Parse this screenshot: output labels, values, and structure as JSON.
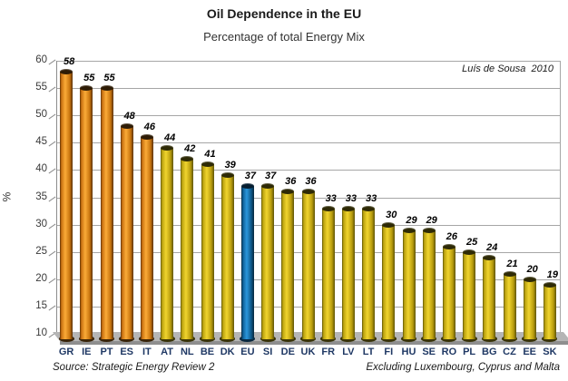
{
  "header": {
    "title": "Oil Dependence in the EU",
    "subtitle": "Percentage of total Energy Mix",
    "signature": "Luís de Sousa  2010"
  },
  "footer": {
    "source_note": "Source: Strategic Energy Review 2",
    "exclusion_note": "Excluding Luxembourg, Cyprus and Malta"
  },
  "chart_data": {
    "type": "bar",
    "style": "3d-cylinder",
    "title": "Oil Dependence in the EU",
    "subtitle": "Percentage of total Energy Mix",
    "categories": [
      "GR",
      "IE",
      "PT",
      "ES",
      "IT",
      "AT",
      "NL",
      "BE",
      "DK",
      "EU",
      "SI",
      "DE",
      "UK",
      "FR",
      "LV",
      "LT",
      "FI",
      "HU",
      "SE",
      "RO",
      "PL",
      "BG",
      "CZ",
      "EE",
      "SK"
    ],
    "values": [
      58,
      55,
      55,
      48,
      46,
      44,
      42,
      41,
      39,
      37,
      37,
      36,
      36,
      33,
      33,
      33,
      30,
      29,
      29,
      26,
      25,
      24,
      21,
      20,
      19
    ],
    "data_labels_shown": true,
    "xlabel": "",
    "ylabel": "%",
    "ylim": [
      10,
      60
    ],
    "ytick_step": 5,
    "yticks": [
      10,
      15,
      20,
      25,
      30,
      35,
      40,
      45,
      50,
      55,
      60
    ],
    "grid": "horizontal",
    "legend": "none",
    "color_keys": [
      "orange",
      "orange",
      "orange",
      "orange",
      "orange",
      "yellow",
      "yellow",
      "yellow",
      "yellow",
      "blue",
      "yellow",
      "yellow",
      "yellow",
      "yellow",
      "yellow",
      "yellow",
      "yellow",
      "yellow",
      "yellow",
      "yellow",
      "yellow",
      "yellow",
      "yellow",
      "yellow",
      "yellow"
    ],
    "palette": {
      "orange": {
        "edge": "#5a3108",
        "mid": "#c87010",
        "light": "#fbab38",
        "mid2": "#c8740e",
        "cap": "#2e1c06",
        "base": "#3a2408"
      },
      "yellow": {
        "edge": "#5e5406",
        "mid": "#bba310",
        "light": "#f0d42e",
        "mid2": "#b89c0e",
        "cap": "#2e2a06",
        "base": "#3a3408"
      },
      "blue": {
        "edge": "#07273c",
        "mid": "#0e5e94",
        "light": "#2b97dc",
        "mid2": "#0d5788",
        "cap": "#061e30",
        "base": "#082840"
      }
    },
    "colors": {
      "grid": "#a6a6a6",
      "axis": "#8c8c8c",
      "floor_top": "#b5b5b5",
      "floor_front": "#8e8e8e",
      "category_label": "#1f3864",
      "value_label": "#000000"
    }
  }
}
